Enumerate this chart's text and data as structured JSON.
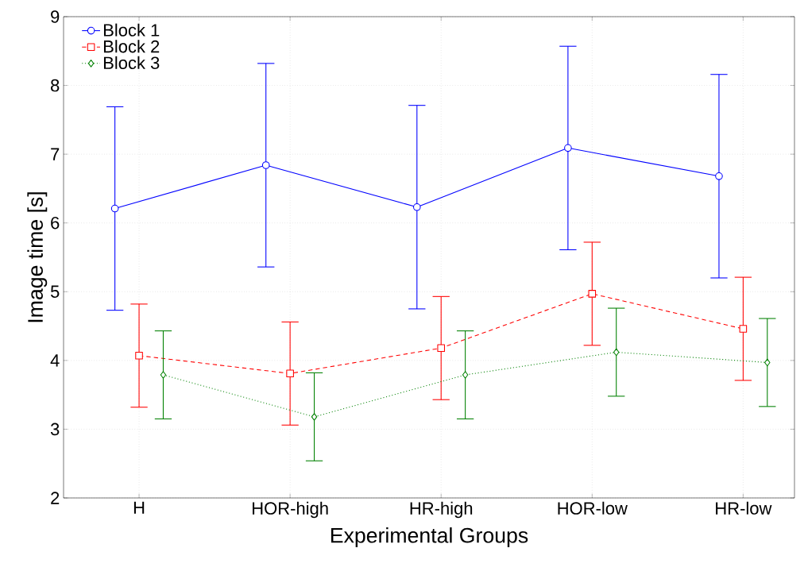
{
  "chart_data": {
    "type": "line",
    "xlabel": "Experimental Groups",
    "ylabel": "Image time [s]",
    "categories": [
      "H",
      "HOR-high",
      "HR-high",
      "HOR-low",
      "HR-low"
    ],
    "series": [
      {
        "name": "Block 1",
        "color": "#0000ff",
        "marker": "circle",
        "line_style": "solid",
        "values": [
          6.21,
          6.84,
          6.23,
          7.09,
          6.68
        ],
        "errors": [
          1.48,
          1.48,
          1.48,
          1.48,
          1.48
        ]
      },
      {
        "name": "Block 2",
        "color": "#ff0000",
        "marker": "square",
        "line_style": "dashed",
        "values": [
          4.07,
          3.81,
          4.18,
          4.97,
          4.46
        ],
        "errors": [
          0.75,
          0.75,
          0.75,
          0.75,
          0.75
        ]
      },
      {
        "name": "Block 3",
        "color": "#008000",
        "marker": "diamond",
        "line_style": "dotted",
        "values": [
          3.79,
          3.18,
          3.79,
          4.12,
          3.97
        ],
        "errors": [
          0.64,
          0.64,
          0.64,
          0.64,
          0.64
        ]
      }
    ],
    "ylim": [
      2,
      9
    ],
    "yticks": [
      2,
      3,
      4,
      5,
      6,
      7,
      8,
      9
    ],
    "grid": true,
    "legend": "top left"
  }
}
